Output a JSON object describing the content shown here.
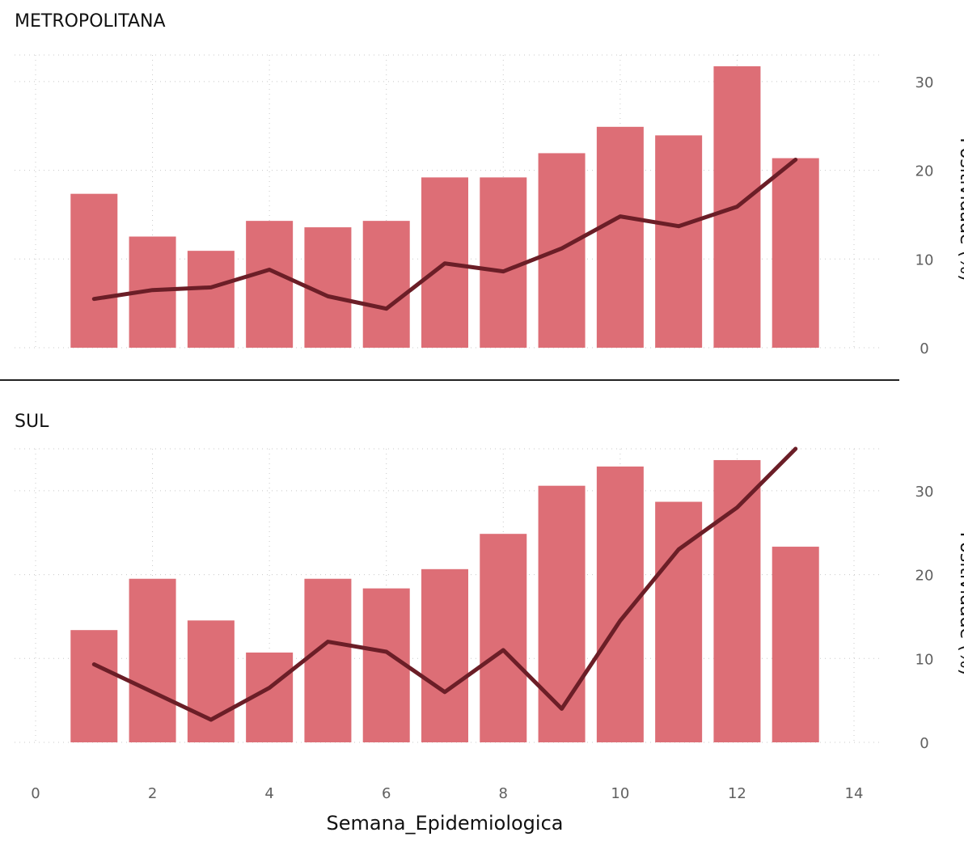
{
  "chart_data": [
    {
      "type": "bar",
      "title": "METROPOLITANA",
      "combo": "bar+line",
      "x": [
        1,
        2,
        3,
        4,
        5,
        6,
        7,
        8,
        9,
        10,
        11,
        12,
        13
      ],
      "bar_values": [
        21.6,
        15.6,
        13.6,
        17.8,
        16.9,
        17.8,
        23.9,
        23.9,
        27.3,
        31.0,
        29.8,
        39.5,
        26.6
      ],
      "line_values": [
        5.5,
        6.5,
        6.8,
        8.8,
        5.8,
        4.4,
        9.5,
        8.6,
        11.2,
        14.8,
        13.7,
        15.9,
        21.2
      ],
      "line_ylim": [
        0,
        33
      ],
      "y2label": "Positividade (%)",
      "y2_ticks": [
        0,
        10,
        20,
        30
      ],
      "xlim": [
        0,
        14
      ],
      "grid": true,
      "colors": {
        "bar": "#DD6E76",
        "line": "#6B1E27"
      }
    },
    {
      "type": "bar",
      "title": "SUL",
      "combo": "bar+line",
      "x": [
        1,
        2,
        3,
        4,
        5,
        6,
        7,
        8,
        9,
        10,
        11,
        12,
        13
      ],
      "bar_values": [
        3.5,
        5.1,
        3.8,
        2.8,
        5.1,
        4.8,
        5.4,
        6.5,
        8.0,
        8.6,
        7.5,
        8.8,
        6.1
      ],
      "line_values": [
        9.3,
        6.0,
        2.7,
        6.5,
        12.0,
        10.8,
        6.0,
        11.0,
        4.0,
        14.5,
        23.0,
        28.0,
        35.0
      ],
      "line_ylim": [
        0,
        35
      ],
      "y2label": "Positividade (%)",
      "y2_ticks": [
        0,
        10,
        20,
        30
      ],
      "x_ticks": [
        0,
        2,
        4,
        6,
        8,
        10,
        12,
        14
      ],
      "xlabel": "Semana_Epidemiologica",
      "xlim": [
        0,
        14
      ],
      "grid": true,
      "colors": {
        "bar": "#DD6E76",
        "line": "#6B1E27"
      }
    }
  ]
}
